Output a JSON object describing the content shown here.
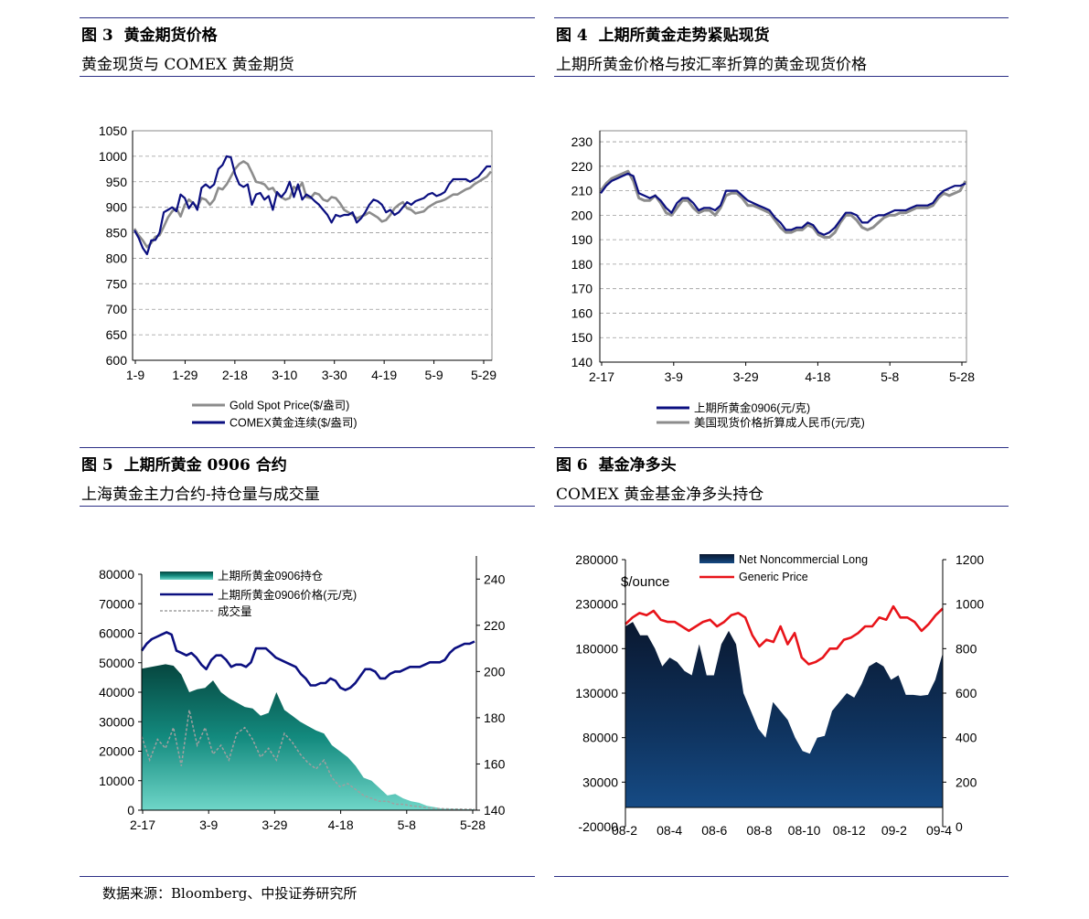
{
  "source": "数据来源：Bloomberg、中投证券研究所",
  "panels": [
    {
      "num": "图 3",
      "title": "黄金期货价格",
      "subtitle": "黄金现货与 COMEX 黄金期货"
    },
    {
      "num": "图 4",
      "title": "上期所黄金走势紧贴现货",
      "subtitle": "上期所黄金价格与按汇率折算的黄金现货价格"
    },
    {
      "num": "图 5",
      "title": "上期所黄金 0906 合约",
      "subtitle": "上海黄金主力合约-持仓量与成交量"
    },
    {
      "num": "图 6",
      "title": "基金净多头",
      "subtitle": "COMEX 黄金基金净多头持仓"
    }
  ],
  "chart_data": [
    {
      "type": "line",
      "title": "",
      "x_ticks": [
        "1-9",
        "1-29",
        "2-18",
        "3-10",
        "3-30",
        "4-19",
        "5-9",
        "5-29"
      ],
      "ylim": [
        600,
        1050
      ],
      "y_ticks": [
        600,
        650,
        700,
        750,
        800,
        850,
        900,
        950,
        1000,
        1050
      ],
      "grid": true,
      "legend": "bottom",
      "series": [
        {
          "name": "Gold Spot Price($/盎司)",
          "color": "#8c8c8c",
          "values": [
            858,
            845,
            835,
            822,
            830,
            842,
            845,
            862,
            880,
            892,
            898,
            882,
            905,
            915,
            908,
            900,
            918,
            915,
            905,
            915,
            938,
            935,
            945,
            960,
            975,
            985,
            990,
            985,
            968,
            950,
            948,
            945,
            935,
            938,
            925,
            920,
            915,
            918,
            940,
            935,
            948,
            920,
            918,
            928,
            925,
            915,
            912,
            920,
            918,
            908,
            895,
            890,
            885,
            878,
            882,
            885,
            890,
            885,
            880,
            872,
            875,
            885,
            898,
            905,
            910,
            898,
            895,
            888,
            890,
            892,
            900,
            905,
            910,
            912,
            915,
            920,
            925,
            925,
            930,
            935,
            938,
            945,
            950,
            955,
            960,
            970
          ]
        },
        {
          "name": "COMEX黄金连续($/盎司)",
          "color": "#0b0f80",
          "values": [
            855,
            840,
            820,
            808,
            835,
            836,
            850,
            890,
            895,
            900,
            892,
            925,
            918,
            898,
            910,
            895,
            938,
            945,
            938,
            945,
            975,
            983,
            1000,
            998,
            965,
            945,
            940,
            945,
            905,
            925,
            928,
            915,
            922,
            895,
            930,
            920,
            930,
            950,
            920,
            945,
            915,
            925,
            920,
            912,
            905,
            895,
            885,
            870,
            885,
            882,
            885,
            885,
            890,
            870,
            878,
            890,
            905,
            915,
            912,
            905,
            890,
            895,
            885,
            890,
            900,
            910,
            905,
            912,
            915,
            918,
            925,
            928,
            922,
            925,
            930,
            945,
            955,
            955,
            955,
            955,
            950,
            955,
            960,
            970,
            980,
            980
          ]
        }
      ]
    },
    {
      "type": "line",
      "title": "",
      "x_ticks": [
        "2-17",
        "3-9",
        "3-29",
        "4-18",
        "5-8",
        "5-28"
      ],
      "ylim": [
        140,
        230
      ],
      "y_ticks": [
        140,
        150,
        160,
        170,
        180,
        190,
        200,
        210,
        220,
        230
      ],
      "grid": true,
      "legend": "bottom",
      "series": [
        {
          "name": "上期所黄金0906(元/克)",
          "color": "#0b0f80",
          "values": [
            209,
            212,
            214,
            215,
            216,
            217,
            216,
            209,
            208,
            207,
            208,
            206,
            203,
            201,
            205,
            207,
            207,
            205,
            202,
            203,
            203,
            202,
            204,
            210,
            210,
            210,
            208,
            206,
            205,
            204,
            203,
            202,
            199,
            197,
            194,
            194,
            195,
            195,
            197,
            196,
            193,
            192,
            193,
            195,
            198,
            201,
            201,
            200,
            197,
            197,
            199,
            200,
            200,
            201,
            202,
            202,
            202,
            203,
            204,
            204,
            204,
            205,
            208,
            210,
            211,
            212,
            212,
            213
          ]
        },
        {
          "name": "美国现货价格折算成人民币(元/克)",
          "color": "#8c8c8c",
          "values": [
            210,
            213,
            215,
            216,
            217,
            218,
            214,
            207,
            206,
            206,
            208,
            205,
            201,
            200,
            203,
            206,
            206,
            203,
            201,
            202,
            202,
            200,
            203,
            208,
            209,
            209,
            207,
            204,
            204,
            203,
            202,
            201,
            198,
            195,
            193,
            193,
            194,
            194,
            196,
            195,
            192,
            191,
            191,
            193,
            197,
            200,
            200,
            198,
            195,
            194,
            195,
            197,
            199,
            200,
            200,
            201,
            201,
            202,
            203,
            203,
            203,
            204,
            207,
            209,
            208,
            209,
            210,
            214
          ]
        }
      ]
    },
    {
      "type": "area",
      "title": "",
      "x_ticks": [
        "2-17",
        "3-9",
        "3-29",
        "4-18",
        "5-8",
        "5-28"
      ],
      "ylim_left": [
        0,
        80000
      ],
      "y_ticks_left": [
        0,
        10000,
        20000,
        30000,
        40000,
        50000,
        60000,
        70000,
        80000
      ],
      "ylim_right": [
        140,
        250
      ],
      "y_ticks_right": [
        140,
        160,
        180,
        200,
        220,
        240
      ],
      "legend": "top-left",
      "series": [
        {
          "name": "上期所黄金0906持仓",
          "axis": "left",
          "color": "#138a7e",
          "values": [
            48000,
            48500,
            49000,
            49500,
            49000,
            46000,
            40000,
            41000,
            41500,
            44000,
            40000,
            38000,
            36500,
            35000,
            34500,
            32000,
            33000,
            40000,
            34000,
            32000,
            30000,
            28500,
            27000,
            26000,
            22000,
            20000,
            18000,
            15000,
            11000,
            10000,
            7500,
            5000,
            5500,
            4000,
            3000,
            2500,
            1500,
            1000,
            500,
            500,
            400,
            300,
            300
          ]
        },
        {
          "name": "上期所黄金0906价格(元/克)",
          "axis": "right",
          "color": "#0b0f80",
          "values": [
            209,
            212,
            214,
            215,
            216,
            217,
            216,
            209,
            208,
            207,
            208,
            206,
            203,
            201,
            205,
            207,
            207,
            205,
            202,
            203,
            203,
            202,
            204,
            210,
            210,
            210,
            208,
            206,
            205,
            204,
            203,
            202,
            199,
            197,
            194,
            194,
            195,
            195,
            197,
            196,
            193,
            192,
            193,
            195,
            198,
            201,
            201,
            200,
            197,
            197,
            199,
            200,
            200,
            201,
            202,
            202,
            202,
            203,
            204,
            204,
            204,
            205,
            208,
            210,
            211,
            212,
            212,
            213
          ]
        },
        {
          "name": "成交量",
          "axis": "left",
          "color": "#a0a0a0",
          "values": [
            25000,
            17000,
            24000,
            21000,
            28000,
            15000,
            34000,
            22000,
            28000,
            19000,
            22000,
            17000,
            26000,
            28000,
            24000,
            18000,
            21000,
            17000,
            26000,
            23000,
            19000,
            16000,
            14000,
            17000,
            11000,
            8000,
            9000,
            7000,
            5000,
            4000,
            3000,
            3000,
            2000,
            2000,
            1500,
            1200,
            800,
            600,
            500,
            400,
            400,
            300,
            300
          ]
        }
      ]
    },
    {
      "type": "area",
      "title": "",
      "x_ticks": [
        "08-2",
        "08-4",
        "08-6",
        "08-8",
        "08-10",
        "08-12",
        "09-2",
        "09-4"
      ],
      "ylim_left": [
        -20000,
        280000
      ],
      "y_ticks_left": [
        -20000,
        30000,
        80000,
        130000,
        180000,
        230000,
        280000
      ],
      "ylim_right": [
        0,
        1200
      ],
      "y_ticks_right": [
        0,
        200,
        400,
        600,
        800,
        1000,
        1200
      ],
      "ylabel_right": "$/ounce",
      "legend": "top-center",
      "series": [
        {
          "name": "Net Noncommercial Long",
          "axis": "left",
          "color": "#0d2a55",
          "values": [
            205000,
            210000,
            195000,
            195000,
            180000,
            160000,
            170000,
            165000,
            155000,
            150000,
            185000,
            150000,
            150000,
            185000,
            200000,
            185000,
            130000,
            110000,
            90000,
            80000,
            120000,
            110000,
            100000,
            80000,
            65000,
            62000,
            80000,
            82000,
            110000,
            120000,
            130000,
            125000,
            140000,
            160000,
            165000,
            160000,
            145000,
            150000,
            128000,
            128000,
            127000,
            128000,
            145000,
            175000
          ]
        },
        {
          "name": "Generic Price",
          "axis": "right",
          "color": "#e8141a",
          "values": [
            910,
            940,
            960,
            950,
            970,
            930,
            920,
            920,
            900,
            880,
            900,
            920,
            930,
            900,
            920,
            950,
            960,
            940,
            860,
            810,
            840,
            830,
            900,
            820,
            870,
            760,
            730,
            740,
            760,
            800,
            800,
            840,
            850,
            870,
            900,
            900,
            940,
            930,
            990,
            940,
            940,
            920,
            880,
            910,
            950,
            980
          ]
        }
      ]
    }
  ]
}
